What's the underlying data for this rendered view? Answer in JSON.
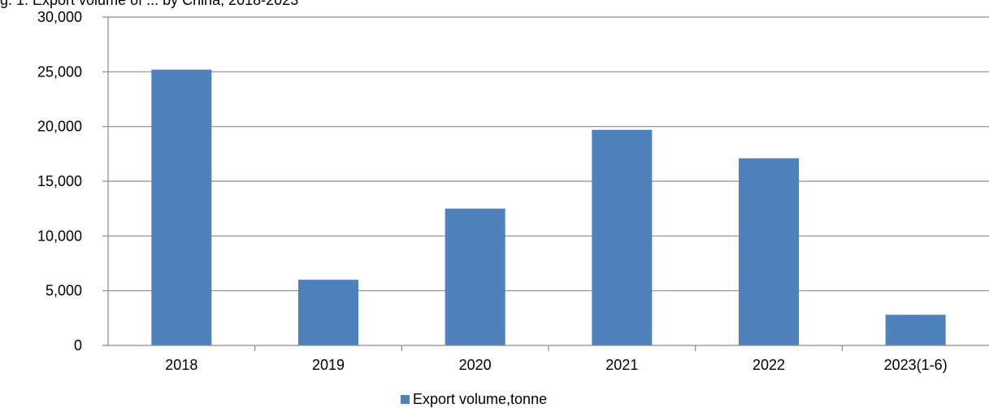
{
  "top_caption_fragment": "g. 1. Export volume of ... by China, 2018-2023",
  "chart_data": {
    "type": "bar",
    "categories": [
      "2018",
      "2019",
      "2020",
      "2021",
      "2022",
      "2023(1-6)"
    ],
    "series": [
      {
        "name": "Export volume,tonne",
        "values": [
          25200,
          6000,
          12500,
          19700,
          17100,
          2800
        ]
      }
    ],
    "title": "",
    "xlabel": "",
    "ylabel": "",
    "ylim": [
      0,
      30000
    ],
    "yticks": [
      0,
      5000,
      10000,
      15000,
      20000,
      25000,
      30000
    ],
    "ytick_labels": [
      "0",
      "5,000",
      "10,000",
      "15,000",
      "20,000",
      "25,000",
      "30,000"
    ],
    "grid": true,
    "legend_position": "bottom",
    "colors": {
      "bar": "#4F81BD",
      "grid": "#8C8C8C",
      "axis": "#8C8C8C"
    }
  }
}
